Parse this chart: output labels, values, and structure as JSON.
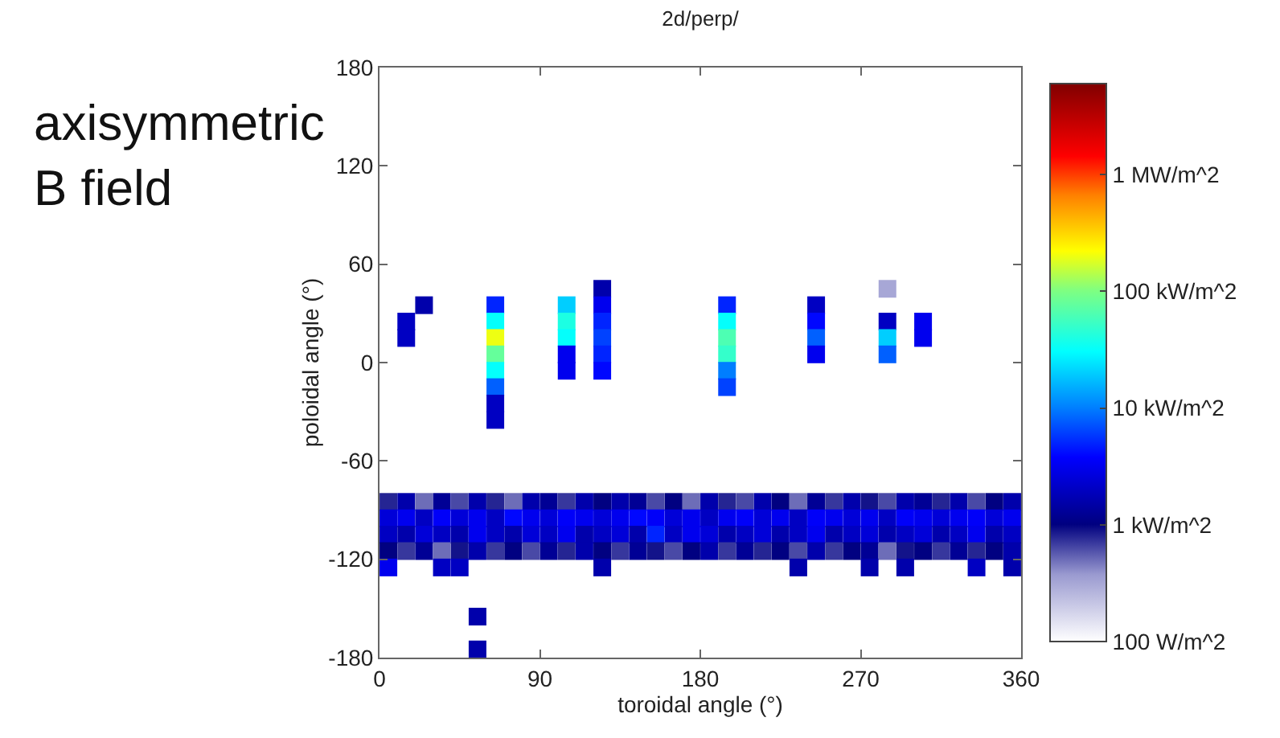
{
  "chart_data": {
    "type": "scatter",
    "title": "2d/perp/",
    "xlabel": "toroidal angle (°)",
    "ylabel": "poloidal angle (°)",
    "annotations": [
      "axisymmetric\nB field"
    ],
    "marker": "square",
    "x": [
      125,
      285,
      25,
      65,
      105,
      125,
      195,
      245,
      15,
      65,
      105,
      125,
      195,
      245,
      285,
      305,
      15,
      65,
      105,
      125,
      195,
      245,
      285,
      305,
      65,
      105,
      125,
      195,
      245,
      285,
      65,
      105,
      125,
      195,
      65,
      195,
      65,
      65,
      5,
      15,
      25,
      35,
      45,
      55,
      65,
      75,
      85,
      95,
      105,
      115,
      125,
      135,
      145,
      155,
      165,
      175,
      185,
      195,
      205,
      215,
      225,
      235,
      245,
      255,
      265,
      275,
      285,
      295,
      305,
      315,
      325,
      335,
      345,
      355,
      5,
      15,
      25,
      35,
      45,
      55,
      65,
      75,
      85,
      95,
      105,
      115,
      125,
      135,
      145,
      155,
      165,
      175,
      185,
      195,
      205,
      215,
      225,
      235,
      245,
      255,
      265,
      275,
      285,
      295,
      305,
      315,
      325,
      335,
      345,
      355,
      5,
      15,
      25,
      35,
      45,
      55,
      65,
      75,
      85,
      95,
      105,
      115,
      125,
      135,
      145,
      155,
      165,
      175,
      185,
      195,
      205,
      215,
      225,
      235,
      245,
      255,
      265,
      275,
      285,
      295,
      305,
      315,
      325,
      335,
      345,
      355,
      5,
      15,
      25,
      35,
      45,
      55,
      65,
      75,
      85,
      95,
      105,
      115,
      125,
      135,
      145,
      155,
      165,
      175,
      185,
      195,
      205,
      215,
      225,
      235,
      245,
      255,
      265,
      275,
      285,
      295,
      305,
      315,
      325,
      335,
      345,
      355,
      5,
      35,
      45,
      125,
      235,
      275,
      295,
      335,
      355,
      55,
      55
    ],
    "values": [
      45,
      45,
      35,
      35,
      35,
      35,
      35,
      35,
      25,
      25,
      25,
      25,
      25,
      25,
      25,
      25,
      15,
      15,
      15,
      15,
      15,
      15,
      15,
      15,
      5,
      5,
      5,
      5,
      5,
      5,
      -5,
      -5,
      -5,
      -5,
      -15,
      -15,
      -25,
      -35,
      -85,
      -85,
      -85,
      -85,
      -85,
      -85,
      -85,
      -85,
      -85,
      -85,
      -85,
      -85,
      -85,
      -85,
      -85,
      -85,
      -85,
      -85,
      -85,
      -85,
      -85,
      -85,
      -85,
      -85,
      -85,
      -85,
      -85,
      -85,
      -85,
      -85,
      -85,
      -85,
      -85,
      -85,
      -85,
      -85,
      -95,
      -95,
      -95,
      -95,
      -95,
      -95,
      -95,
      -95,
      -95,
      -95,
      -95,
      -95,
      -95,
      -95,
      -95,
      -95,
      -95,
      -95,
      -95,
      -95,
      -95,
      -95,
      -95,
      -95,
      -95,
      -95,
      -95,
      -95,
      -95,
      -95,
      -95,
      -95,
      -95,
      -95,
      -95,
      -95,
      -105,
      -105,
      -105,
      -105,
      -105,
      -105,
      -105,
      -105,
      -105,
      -105,
      -105,
      -105,
      -105,
      -105,
      -105,
      -105,
      -105,
      -105,
      -105,
      -105,
      -105,
      -105,
      -105,
      -105,
      -105,
      -105,
      -105,
      -105,
      -105,
      -105,
      -105,
      -105,
      -105,
      -105,
      -105,
      -105,
      -115,
      -115,
      -115,
      -115,
      -115,
      -115,
      -115,
      -115,
      -115,
      -115,
      -115,
      -115,
      -115,
      -115,
      -115,
      -115,
      -115,
      -115,
      -115,
      -115,
      -115,
      -115,
      -115,
      -115,
      -115,
      -115,
      -115,
      -115,
      -115,
      -115,
      -115,
      -115,
      -115,
      -115,
      -115,
      -115,
      -125,
      -125,
      -125,
      -125,
      -125,
      -125,
      -125,
      -125,
      -125,
      -155,
      -175
    ],
    "cvalues": [
      3.2,
      2.5,
      3.2,
      3.7,
      4.3,
      3.5,
      3.7,
      3.3,
      3.3,
      4.5,
      4.6,
      3.7,
      4.5,
      3.6,
      3.3,
      3.5,
      3.3,
      5.3,
      4.5,
      3.8,
      4.8,
      3.9,
      4.3,
      3.5,
      4.9,
      3.5,
      3.7,
      4.7,
      3.5,
      3.9,
      4.5,
      3.5,
      3.6,
      4,
      3.9,
      3.8,
      3.3,
      3.3,
      2.9,
      3.2,
      2.7,
      3.1,
      2.8,
      3.2,
      2.9,
      2.7,
      3.2,
      3.1,
      2.85,
      3.2,
      3,
      3.2,
      3.1,
      2.8,
      3,
      2.7,
      3.2,
      2.9,
      2.8,
      3.2,
      3,
      2.7,
      3.1,
      2.85,
      3.2,
      2.95,
      2.8,
      3.2,
      3.1,
      2.9,
      3.2,
      2.8,
      3,
      3.2,
      3.4,
      3.5,
      3.3,
      3.55,
      3.4,
      3.5,
      3.3,
      3.6,
      3.5,
      3.4,
      3.55,
      3.5,
      3.4,
      3.5,
      3.6,
      3.55,
      3.4,
      3.5,
      3.3,
      3.5,
      3.55,
      3.4,
      3.5,
      3.3,
      3.55,
      3.5,
      3.4,
      3.5,
      3.3,
      3.55,
      3.5,
      3.4,
      3.5,
      3.55,
      3.4,
      3.5,
      3.3,
      3.2,
      3.4,
      3.3,
      3.2,
      3.5,
      3.3,
      3.2,
      3.4,
      3.3,
      3.5,
      3.2,
      3.3,
      3.4,
      3.2,
      3.7,
      3.3,
      3.5,
      3.4,
      3.2,
      3.3,
      3.4,
      3.2,
      3.3,
      3.5,
      3.2,
      3.3,
      3.4,
      3.2,
      3.3,
      3.4,
      3.2,
      3.3,
      3.5,
      3.2,
      3.3,
      3,
      2.85,
      3.1,
      2.7,
      2.95,
      3.2,
      2.85,
      3,
      2.8,
      3.1,
      2.9,
      3.2,
      3,
      2.85,
      3.1,
      2.95,
      2.8,
      3,
      3.2,
      2.85,
      3.1,
      2.9,
      3,
      2.8,
      3.2,
      2.85,
      3,
      3.1,
      2.7,
      2.95,
      3,
      2.85,
      3.1,
      2.9,
      3,
      3.2,
      3.5,
      3.3,
      3.3,
      3.2,
      3.2,
      3.2,
      3.2,
      3.3,
      3.2,
      3.2,
      3.2
    ],
    "clim": [
      2,
      6.78
    ],
    "cticks": [
      {
        "value": 2,
        "label": "100 W/m^2"
      },
      {
        "value": 3,
        "label": "1 kW/m^2"
      },
      {
        "value": 4,
        "label": "10 kW/m^2"
      },
      {
        "value": 5,
        "label": "100 kW/m^2"
      },
      {
        "value": 6,
        "label": "1 MW/m^2"
      }
    ],
    "xlim": [
      0,
      360
    ],
    "xticks": [
      0,
      90,
      180,
      270,
      360
    ],
    "ylim": [
      -180,
      180
    ],
    "yticks": [
      -180,
      -120,
      -60,
      0,
      60,
      120,
      180
    ]
  }
}
